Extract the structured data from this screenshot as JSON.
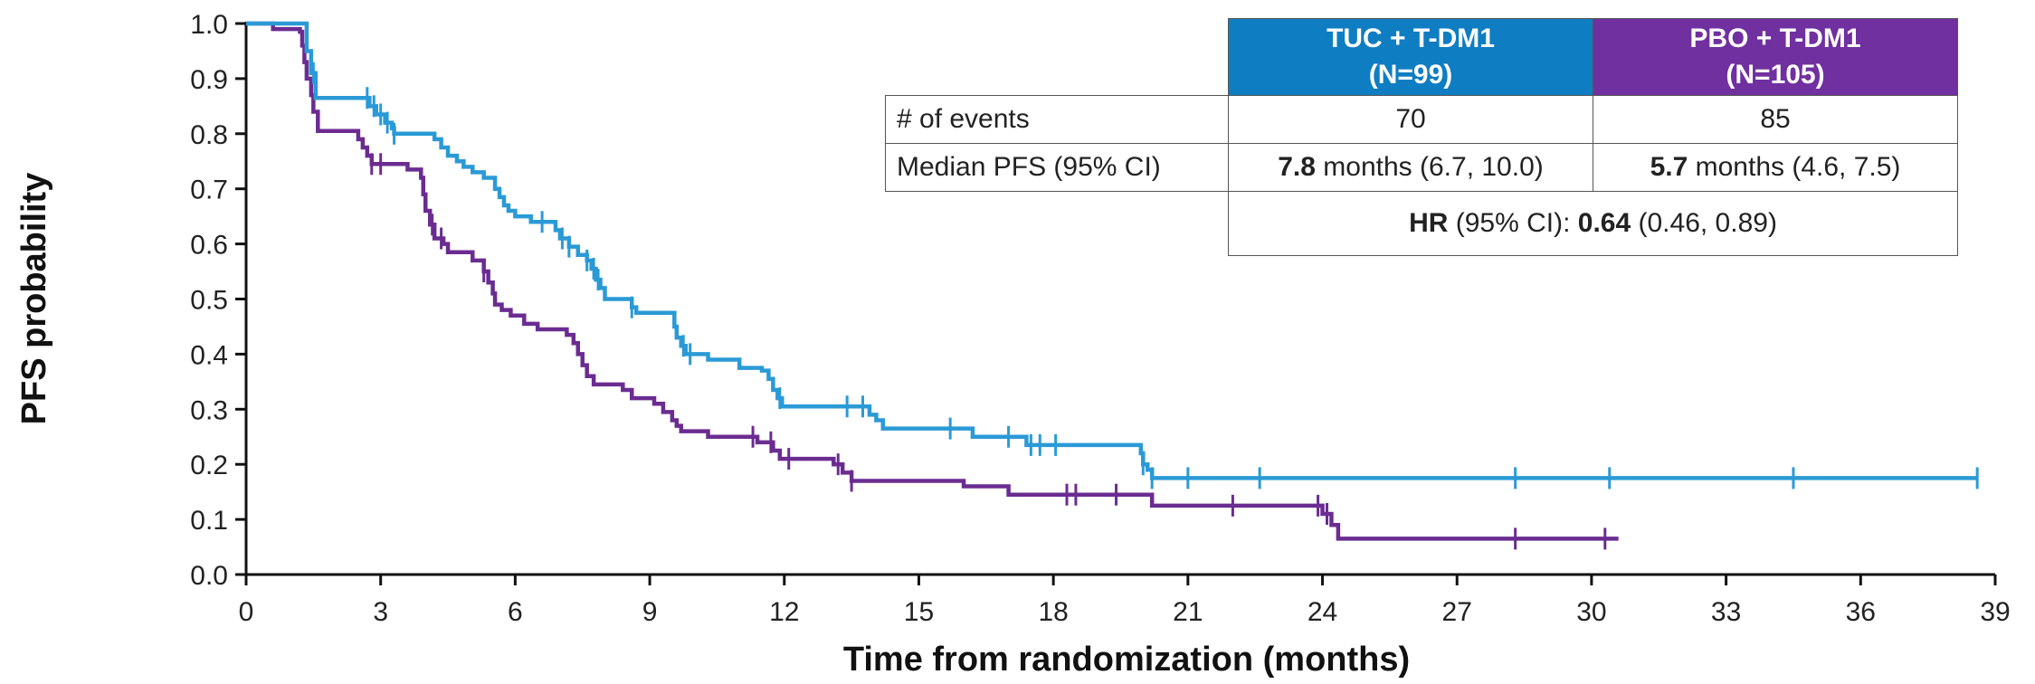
{
  "chart_data": {
    "type": "line",
    "xlabel": "Time from randomization (months)",
    "ylabel": "PFS probability",
    "xlim": [
      0,
      39
    ],
    "ylim": [
      0,
      1.0
    ],
    "x_ticks": [
      "0",
      "3",
      "6",
      "9",
      "12",
      "15",
      "18",
      "21",
      "24",
      "27",
      "30",
      "33",
      "36",
      "39"
    ],
    "y_ticks": [
      "0.0",
      "0.1",
      "0.2",
      "0.3",
      "0.4",
      "0.5",
      "0.6",
      "0.7",
      "0.8",
      "0.9",
      "1.0"
    ],
    "grid": false,
    "series": [
      {
        "name": "TUC + T-DM1",
        "color": "#2a9ad6",
        "step": [
          [
            0,
            1.0
          ],
          [
            1.3,
            1.0
          ],
          [
            1.35,
            0.95
          ],
          [
            1.45,
            0.91
          ],
          [
            1.55,
            0.865
          ],
          [
            2.7,
            0.865
          ],
          [
            2.75,
            0.85
          ],
          [
            2.9,
            0.835
          ],
          [
            3.1,
            0.82
          ],
          [
            3.25,
            0.81
          ],
          [
            3.3,
            0.8
          ],
          [
            4.1,
            0.8
          ],
          [
            4.2,
            0.79
          ],
          [
            4.35,
            0.775
          ],
          [
            4.5,
            0.76
          ],
          [
            4.7,
            0.75
          ],
          [
            4.85,
            0.74
          ],
          [
            5.05,
            0.73
          ],
          [
            5.3,
            0.72
          ],
          [
            5.45,
            0.72
          ],
          [
            5.55,
            0.7
          ],
          [
            5.65,
            0.685
          ],
          [
            5.75,
            0.67
          ],
          [
            5.85,
            0.66
          ],
          [
            6.0,
            0.65
          ],
          [
            6.35,
            0.64
          ],
          [
            6.9,
            0.625
          ],
          [
            7.0,
            0.61
          ],
          [
            7.2,
            0.595
          ],
          [
            7.4,
            0.58
          ],
          [
            7.6,
            0.57
          ],
          [
            7.7,
            0.555
          ],
          [
            7.8,
            0.535
          ],
          [
            7.9,
            0.52
          ],
          [
            8.0,
            0.5
          ],
          [
            8.6,
            0.485
          ],
          [
            8.7,
            0.475
          ],
          [
            9.5,
            0.475
          ],
          [
            9.55,
            0.45
          ],
          [
            9.6,
            0.43
          ],
          [
            9.7,
            0.415
          ],
          [
            9.8,
            0.4
          ],
          [
            10.3,
            0.39
          ],
          [
            11.0,
            0.375
          ],
          [
            11.5,
            0.37
          ],
          [
            11.65,
            0.355
          ],
          [
            11.75,
            0.335
          ],
          [
            11.85,
            0.32
          ],
          [
            11.95,
            0.305
          ],
          [
            13.8,
            0.305
          ],
          [
            13.9,
            0.29
          ],
          [
            14.05,
            0.28
          ],
          [
            14.2,
            0.265
          ],
          [
            16.1,
            0.265
          ],
          [
            16.2,
            0.25
          ],
          [
            17.3,
            0.25
          ],
          [
            17.4,
            0.235
          ],
          [
            19.9,
            0.235
          ],
          [
            19.95,
            0.22
          ],
          [
            20.0,
            0.2
          ],
          [
            20.1,
            0.19
          ],
          [
            20.2,
            0.175
          ],
          [
            38.6,
            0.175
          ]
        ],
        "censor_x": [
          1.5,
          2.7,
          2.85,
          3.0,
          3.15,
          3.3,
          6.6,
          7.05,
          7.2,
          7.6,
          7.75,
          7.85,
          8.6,
          9.75,
          9.9,
          11.9,
          13.4,
          13.75,
          15.7,
          17.0,
          17.5,
          17.7,
          18.05,
          20.0,
          20.2,
          21.0,
          22.6,
          28.3,
          30.4,
          34.5,
          38.6
        ]
      },
      {
        "name": "PBO + T-DM1",
        "color": "#6b2c91",
        "step": [
          [
            0,
            1.0
          ],
          [
            0.6,
            0.99
          ],
          [
            1.2,
            0.985
          ],
          [
            1.25,
            0.96
          ],
          [
            1.3,
            0.93
          ],
          [
            1.35,
            0.9
          ],
          [
            1.45,
            0.87
          ],
          [
            1.5,
            0.84
          ],
          [
            1.6,
            0.805
          ],
          [
            2.4,
            0.805
          ],
          [
            2.5,
            0.79
          ],
          [
            2.6,
            0.775
          ],
          [
            2.7,
            0.76
          ],
          [
            2.8,
            0.745
          ],
          [
            3.6,
            0.735
          ],
          [
            3.9,
            0.72
          ],
          [
            3.95,
            0.69
          ],
          [
            4.0,
            0.66
          ],
          [
            4.1,
            0.635
          ],
          [
            4.2,
            0.61
          ],
          [
            4.4,
            0.6
          ],
          [
            4.5,
            0.585
          ],
          [
            5.05,
            0.57
          ],
          [
            5.3,
            0.55
          ],
          [
            5.4,
            0.53
          ],
          [
            5.5,
            0.51
          ],
          [
            5.55,
            0.49
          ],
          [
            5.7,
            0.48
          ],
          [
            5.9,
            0.47
          ],
          [
            6.2,
            0.455
          ],
          [
            6.5,
            0.445
          ],
          [
            7.15,
            0.435
          ],
          [
            7.3,
            0.42
          ],
          [
            7.4,
            0.4
          ],
          [
            7.5,
            0.38
          ],
          [
            7.6,
            0.36
          ],
          [
            7.75,
            0.345
          ],
          [
            8.4,
            0.335
          ],
          [
            8.6,
            0.32
          ],
          [
            9.1,
            0.31
          ],
          [
            9.3,
            0.295
          ],
          [
            9.5,
            0.28
          ],
          [
            9.6,
            0.27
          ],
          [
            9.7,
            0.26
          ],
          [
            10.3,
            0.25
          ],
          [
            11.4,
            0.24
          ],
          [
            11.75,
            0.225
          ],
          [
            11.9,
            0.21
          ],
          [
            13.1,
            0.2
          ],
          [
            13.3,
            0.185
          ],
          [
            13.5,
            0.17
          ],
          [
            16.0,
            0.16
          ],
          [
            17.0,
            0.145
          ],
          [
            20.2,
            0.125
          ],
          [
            24.0,
            0.11
          ],
          [
            24.2,
            0.09
          ],
          [
            24.35,
            0.065
          ],
          [
            30.6,
            0.065
          ]
        ],
        "censor_x": [
          2.8,
          3.0,
          4.15,
          4.35,
          5.3,
          11.3,
          11.7,
          12.1,
          13.2,
          13.5,
          18.3,
          18.5,
          19.4,
          22.0,
          23.9,
          24.1,
          28.3,
          30.3
        ]
      }
    ]
  },
  "table": {
    "header": {
      "tuc_line1": "TUC + T-DM1",
      "tuc_line2": "(N=99)",
      "pbo_line1": "PBO + T-DM1",
      "pbo_line2": "(N=105)"
    },
    "events_label": "# of events",
    "events_tuc": "70",
    "events_pbo": "85",
    "median_label": "Median PFS (95% CI)",
    "median_tuc_bold": "7.8",
    "median_tuc_rest": " months (6.7, 10.0)",
    "median_pbo_bold": "5.7",
    "median_pbo_rest": " months (4.6, 7.5)",
    "hr_bold": "HR",
    "hr_mid": " (95% CI): ",
    "hr_value": "0.64",
    "hr_ci": " (0.46, 0.89)"
  }
}
